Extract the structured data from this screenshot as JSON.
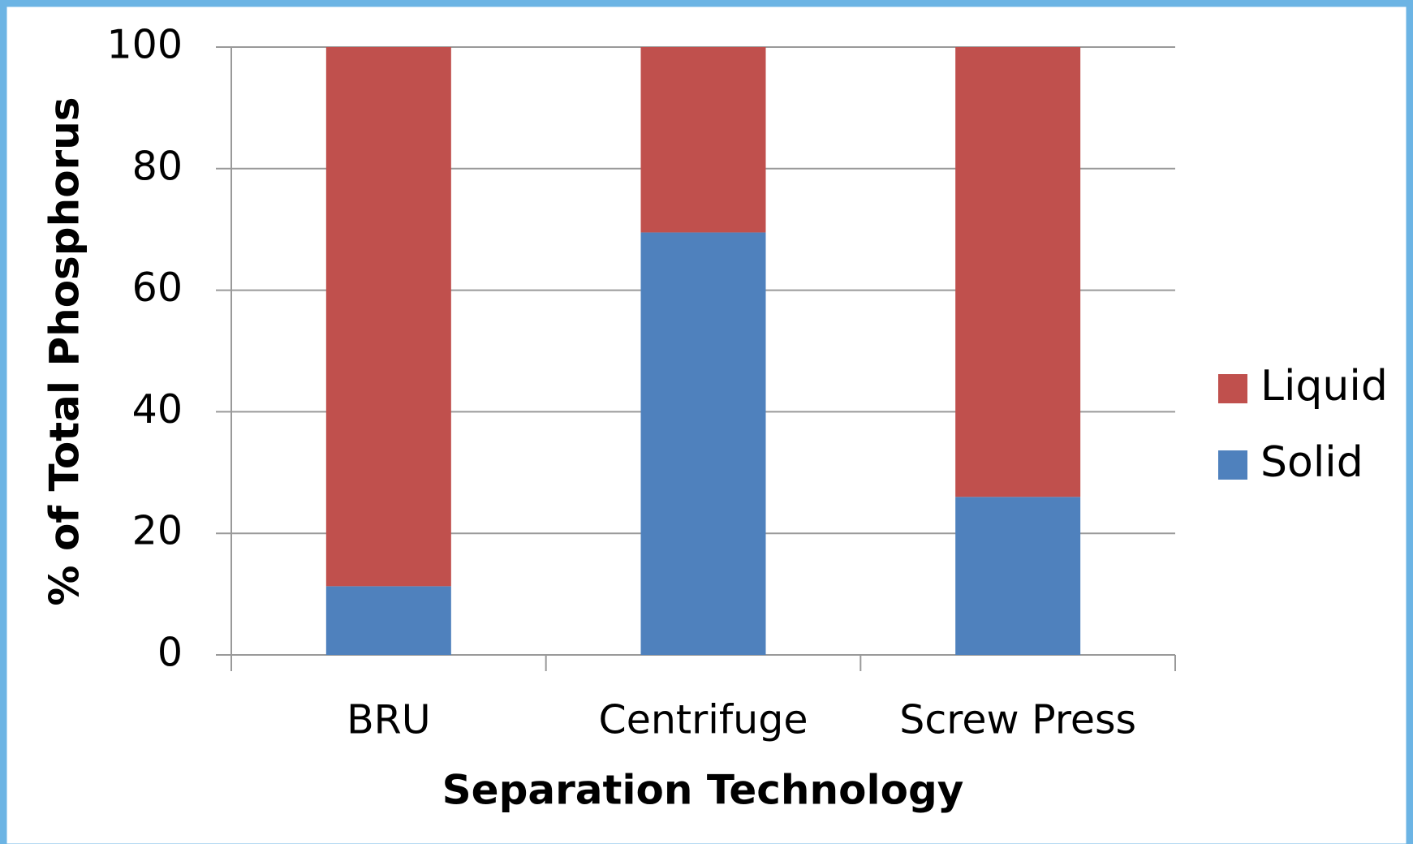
{
  "chart_data": {
    "type": "stacked_bar",
    "x_label": "Separation Technology",
    "y_label": "% of Total Phosphorus",
    "categories": [
      "BRU",
      "Centrifuge",
      "Screw Press"
    ],
    "series": [
      {
        "name": "Solid",
        "color": "#4f81bd",
        "values": [
          11.3,
          69.5,
          26
        ]
      },
      {
        "name": "Liquid",
        "color": "#c0504d",
        "values": [
          88.7,
          30.5,
          74
        ]
      }
    ],
    "ylim": [
      0,
      100
    ],
    "yticks": [
      0,
      20,
      40,
      60,
      80,
      100
    ],
    "grid": true,
    "legend": "right"
  }
}
